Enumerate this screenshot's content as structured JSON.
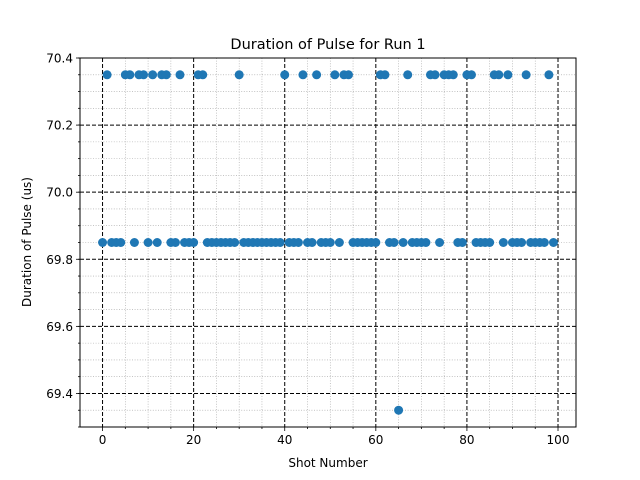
{
  "chart_data": {
    "type": "scatter",
    "title": "Duration of Pulse for Run 1",
    "xlabel": "Shot Number",
    "ylabel": "Duration of Pulse (us)",
    "xlim": [
      -4.95,
      103.95
    ],
    "ylim": [
      69.3,
      70.4
    ],
    "xticks": [
      0,
      20,
      40,
      60,
      80,
      100
    ],
    "xtick_labels": [
      "0",
      "20",
      "40",
      "60",
      "80",
      "100"
    ],
    "yticks": [
      69.4,
      69.6,
      69.8,
      70.0,
      70.2,
      70.4
    ],
    "ytick_labels": [
      "69.4",
      "69.6",
      "69.8",
      "70.0",
      "70.2",
      "70.4"
    ],
    "grid": true,
    "legend": "none",
    "marker_color": "#1f77b4",
    "x": [
      0,
      1,
      2,
      3,
      4,
      5,
      6,
      7,
      8,
      9,
      10,
      11,
      12,
      13,
      14,
      15,
      16,
      17,
      18,
      19,
      20,
      21,
      22,
      23,
      24,
      25,
      26,
      27,
      28,
      29,
      30,
      31,
      32,
      33,
      34,
      35,
      36,
      37,
      38,
      39,
      40,
      41,
      42,
      43,
      44,
      45,
      46,
      47,
      48,
      49,
      50,
      51,
      52,
      53,
      54,
      55,
      56,
      57,
      58,
      59,
      60,
      61,
      62,
      63,
      64,
      65,
      66,
      67,
      68,
      69,
      70,
      71,
      72,
      73,
      74,
      75,
      76,
      77,
      78,
      79,
      80,
      81,
      82,
      83,
      84,
      85,
      86,
      87,
      88,
      89,
      90,
      91,
      92,
      93,
      94,
      95,
      96,
      97,
      98,
      99
    ],
    "y": [
      69.85,
      70.35,
      69.85,
      69.85,
      69.85,
      70.35,
      70.35,
      69.85,
      70.35,
      70.35,
      69.85,
      70.35,
      69.85,
      70.35,
      70.35,
      69.85,
      69.85,
      70.35,
      69.85,
      69.85,
      69.85,
      70.35,
      70.35,
      69.85,
      69.85,
      69.85,
      69.85,
      69.85,
      69.85,
      69.85,
      70.35,
      69.85,
      69.85,
      69.85,
      69.85,
      69.85,
      69.85,
      69.85,
      69.85,
      69.85,
      70.35,
      69.85,
      69.85,
      69.85,
      70.35,
      69.85,
      69.85,
      70.35,
      69.85,
      69.85,
      69.85,
      70.35,
      69.85,
      70.35,
      70.35,
      69.85,
      69.85,
      69.85,
      69.85,
      69.85,
      69.85,
      70.35,
      70.35,
      69.85,
      69.85,
      69.35,
      69.85,
      70.35,
      69.85,
      69.85,
      69.85,
      69.85,
      70.35,
      70.35,
      69.85,
      70.35,
      70.35,
      70.35,
      69.85,
      69.85,
      70.35,
      70.35,
      69.85,
      69.85,
      69.85,
      69.85,
      70.35,
      70.35,
      69.85,
      70.35,
      69.85,
      69.85,
      69.85,
      70.35,
      69.85,
      69.85,
      69.85,
      69.85,
      70.35,
      69.85
    ]
  }
}
